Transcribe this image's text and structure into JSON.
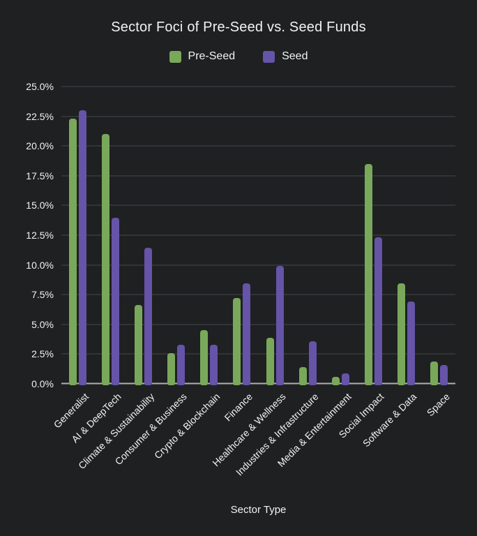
{
  "title": "Sector Foci of Pre-Seed vs. Seed Funds",
  "chart_data": {
    "type": "bar",
    "title": "Sector Foci of Pre-Seed vs. Seed Funds",
    "xlabel": "Sector Type",
    "ylabel": "",
    "ylim": [
      0,
      25
    ],
    "grid": true,
    "legend_position": "top",
    "yticks": [
      "0.0%",
      "2.5%",
      "5.0%",
      "7.5%",
      "10.0%",
      "12.5%",
      "15.0%",
      "17.5%",
      "20.0%",
      "22.5%",
      "25.0%"
    ],
    "categories": [
      "Generalist",
      "AI & DeepTech",
      "Climate & Sustainability",
      "Consumer & Business",
      "Crypto & Blockchain",
      "Finance",
      "Healthcare & Wellness",
      "Industries & Infrastructure",
      "Media & Entertainment",
      "Social Impact",
      "Software & Data",
      "Space"
    ],
    "series": [
      {
        "name": "Pre-Seed",
        "color": "#79a85b",
        "values": [
          22.3,
          21.0,
          6.7,
          2.7,
          4.6,
          7.3,
          4.0,
          1.5,
          0.7,
          18.5,
          8.5,
          2.0
        ]
      },
      {
        "name": "Seed",
        "color": "#6554a8",
        "values": [
          23.0,
          14.0,
          11.5,
          3.4,
          3.4,
          8.5,
          10.0,
          3.7,
          1.0,
          12.4,
          7.0,
          1.7
        ]
      }
    ]
  },
  "colors": {
    "background": "#1f2022",
    "text": "#f2f2f2",
    "gridline": "#454649",
    "axis_line": "#aeb0b2",
    "pre_seed": "#79a85b",
    "seed": "#6554a8"
  }
}
